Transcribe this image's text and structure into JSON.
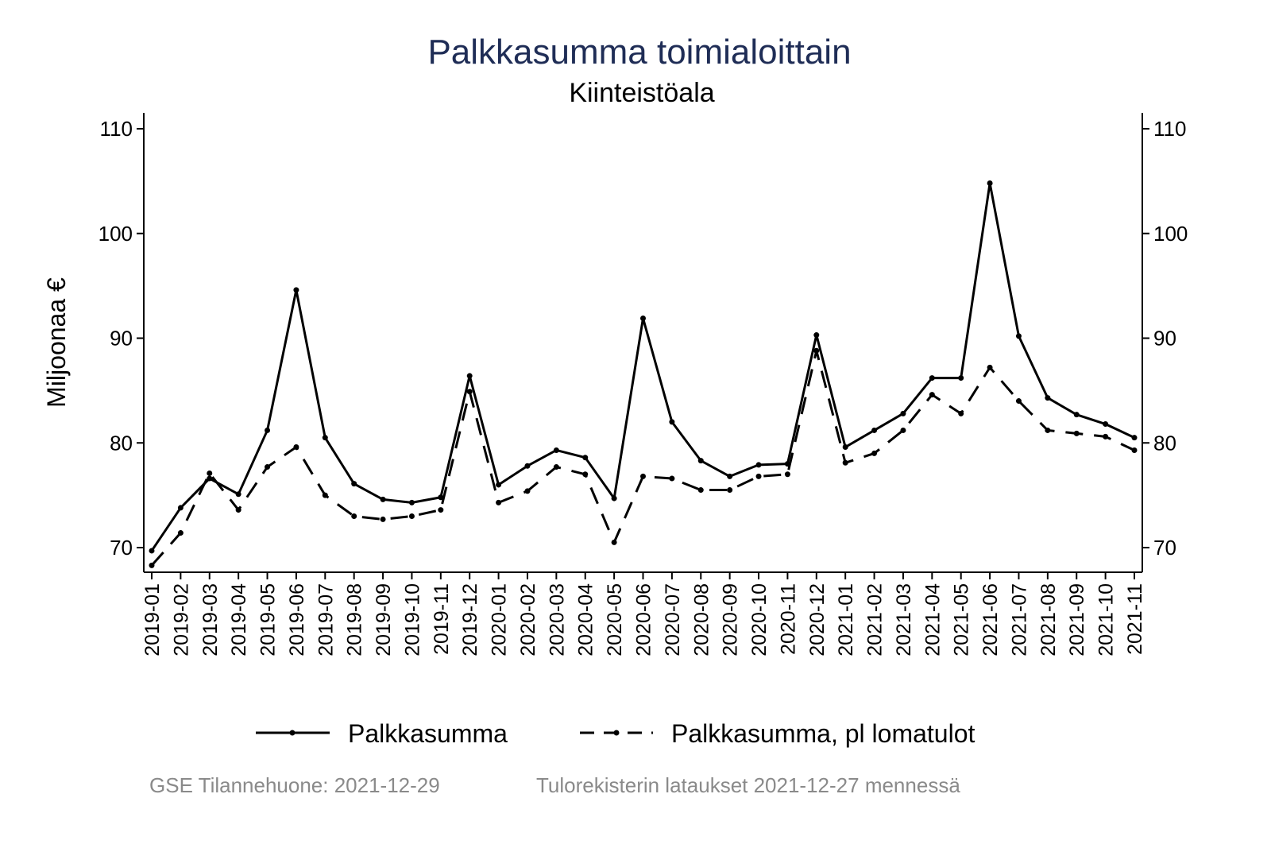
{
  "chart_data": {
    "type": "line",
    "title": "Palkkasumma toimialoittain",
    "subtitle": "Kiinteistöala",
    "ylabel": "Miljoonaa €",
    "xlabel": "",
    "ylim": [
      67.5,
      111.5
    ],
    "yticks": [
      70,
      80,
      90,
      100,
      110
    ],
    "x": [
      "2019-01",
      "2019-02",
      "2019-03",
      "2019-04",
      "2019-05",
      "2019-06",
      "2019-07",
      "2019-08",
      "2019-09",
      "2019-10",
      "2019-11",
      "2019-12",
      "2020-01",
      "2020-02",
      "2020-03",
      "2020-04",
      "2020-05",
      "2020-06",
      "2020-07",
      "2020-08",
      "2020-09",
      "2020-10",
      "2020-11",
      "2020-12",
      "2021-01",
      "2021-02",
      "2021-03",
      "2021-04",
      "2021-05",
      "2021-06",
      "2021-07",
      "2021-08",
      "2021-09",
      "2021-10",
      "2021-11"
    ],
    "series": [
      {
        "name": "Palkkasumma",
        "style": "solid",
        "values": [
          69.7,
          73.8,
          76.6,
          75.1,
          81.2,
          94.6,
          80.5,
          76.1,
          74.6,
          74.3,
          74.8,
          86.4,
          76.0,
          77.8,
          79.3,
          78.6,
          74.7,
          91.9,
          82.0,
          78.3,
          76.8,
          77.9,
          78.0,
          90.3,
          79.6,
          81.2,
          82.8,
          86.2,
          86.2,
          104.8,
          90.2,
          84.3,
          82.7,
          81.8,
          80.5
        ]
      },
      {
        "name": "Palkkasumma, pl lomatulot",
        "style": "dashed",
        "values": [
          68.3,
          71.4,
          77.1,
          73.6,
          77.7,
          79.6,
          75.0,
          73.0,
          72.7,
          73.0,
          73.6,
          84.9,
          74.3,
          75.4,
          77.7,
          77.0,
          70.5,
          76.8,
          76.6,
          75.5,
          75.5,
          76.8,
          77.0,
          88.8,
          78.1,
          79.0,
          81.2,
          84.6,
          82.8,
          87.2,
          84.0,
          81.2,
          80.9,
          80.6,
          79.3
        ]
      }
    ],
    "legend": "bottom",
    "grid": false,
    "colors": {
      "title": "#1f2d56",
      "line": "#000000",
      "note": "#8a8a8a"
    }
  },
  "footer": {
    "left": "GSE Tilannehuone: 2021-12-29",
    "right": "Tulorekisterin lataukset 2021-12-27 mennessä"
  }
}
